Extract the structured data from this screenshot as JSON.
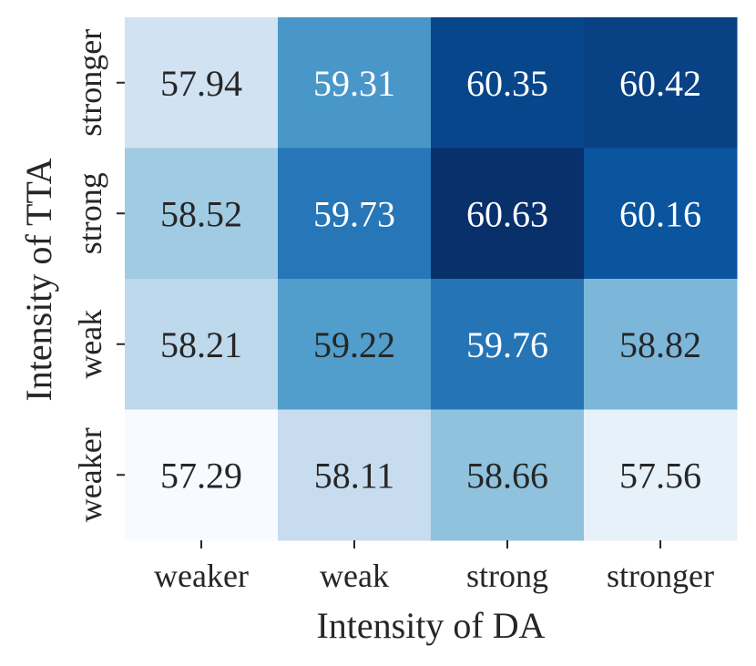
{
  "chart_data": {
    "type": "heatmap",
    "xlabel": "Intensity of DA",
    "ylabel": "Intensity of TTA",
    "x_categories": [
      "weaker",
      "weak",
      "strong",
      "stronger"
    ],
    "y_categories": [
      "stronger",
      "strong",
      "weak",
      "weaker"
    ],
    "values": [
      [
        57.94,
        59.31,
        60.35,
        60.42
      ],
      [
        58.52,
        59.73,
        60.63,
        60.16
      ],
      [
        58.21,
        59.22,
        59.76,
        58.82
      ],
      [
        57.29,
        58.11,
        58.66,
        57.56
      ]
    ],
    "value_format": "0.00",
    "colormap": "Blues",
    "colorbar": false,
    "grid": false,
    "label_colors": {
      "dark_text": "#262626",
      "light_text": "#ffffff"
    },
    "axis_color": "#262626"
  }
}
